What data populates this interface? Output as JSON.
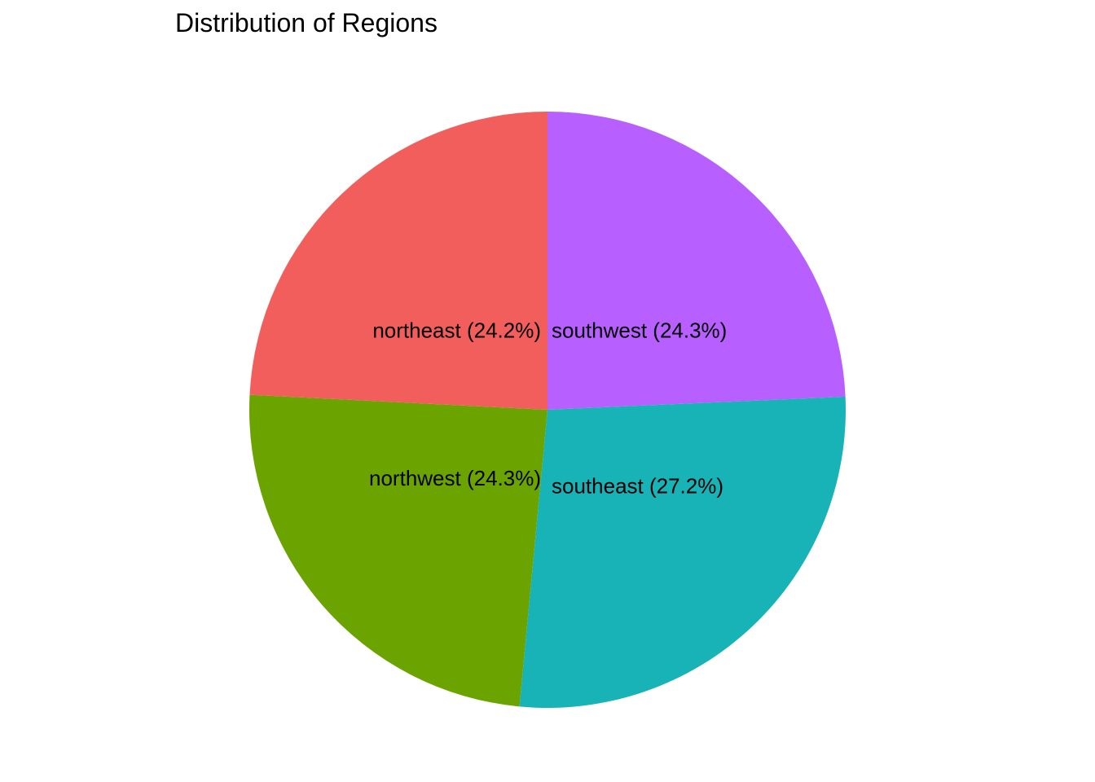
{
  "chart_data": {
    "type": "pie",
    "title": "Distribution of Regions",
    "slices": [
      {
        "name": "southwest",
        "percent": 24.3,
        "label": "southwest (24.3%)",
        "color": "#B75FFF"
      },
      {
        "name": "southeast",
        "percent": 27.2,
        "label": "southeast (27.2%)",
        "color": "#17B3B7"
      },
      {
        "name": "northwest",
        "percent": 24.3,
        "label": "northwest (24.3%)",
        "color": "#6BA300"
      },
      {
        "name": "northeast",
        "percent": 24.2,
        "label": "northeast (24.2%)",
        "color": "#F25E5B"
      }
    ],
    "direction": "clockwise",
    "start": "top",
    "legend": "none"
  }
}
